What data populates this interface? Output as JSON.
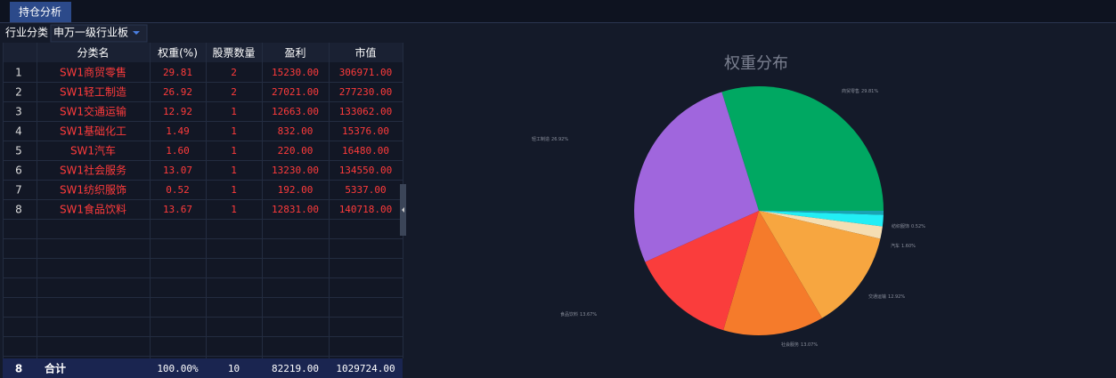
{
  "tab": "持仓分析",
  "filter": {
    "label": "行业分类",
    "value": "申万一级行业板"
  },
  "table": {
    "columns": [
      "分类名",
      "权重(%)",
      "股票数量",
      "盈利",
      "市值"
    ],
    "rows": [
      [
        "1",
        "SW1商贸零售",
        "29.81",
        "2",
        "15230.00",
        "306971.00"
      ],
      [
        "2",
        "SW1轻工制造",
        "26.92",
        "2",
        "27021.00",
        "277230.00"
      ],
      [
        "3",
        "SW1交通运输",
        "12.92",
        "1",
        "12663.00",
        "133062.00"
      ],
      [
        "4",
        "SW1基础化工",
        "1.49",
        "1",
        "832.00",
        "15376.00"
      ],
      [
        "5",
        "SW1汽车",
        "1.60",
        "1",
        "220.00",
        "16480.00"
      ],
      [
        "6",
        "SW1社会服务",
        "13.07",
        "1",
        "13230.00",
        "134550.00"
      ],
      [
        "7",
        "SW1纺织服饰",
        "0.52",
        "1",
        "192.00",
        "5337.00"
      ],
      [
        "8",
        "SW1食品饮料",
        "13.67",
        "1",
        "12831.00",
        "140718.00"
      ]
    ],
    "footer": [
      "8",
      "合计",
      "100.00%",
      "10",
      "82219.00",
      "1029724.00"
    ]
  },
  "chart_data": {
    "type": "pie",
    "title": "权重分布",
    "categories": [
      "商贸零售",
      "纺织服饰",
      null,
      "汽车",
      "交通运输",
      "社会服务",
      "食品饮料",
      "轻工制造"
    ],
    "values": [
      29.81,
      0.52,
      1.49,
      1.6,
      12.92,
      13.07,
      13.67,
      26.92
    ],
    "value_labels": [
      "29.81%",
      "0.52%",
      null,
      "1.60%",
      "12.92%",
      "13.07%",
      "13.67%",
      "26.92%"
    ],
    "colors": [
      "#00a862",
      "#1aa3b3",
      "#22eef5",
      "#f5deb3",
      "#f7a640",
      "#f57b2b",
      "#fa3d3c",
      "#a066dd"
    ]
  }
}
